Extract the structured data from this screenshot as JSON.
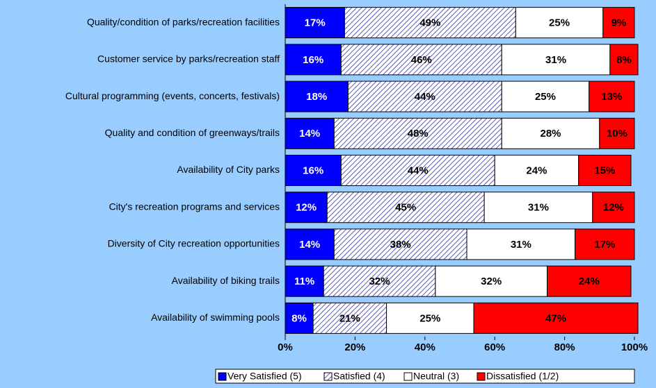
{
  "chart_data": {
    "type": "stacked-bar-horizontal",
    "categories": [
      "Quality/condition of parks/recreation facilities",
      "Customer service by parks/recreation staff",
      "Cultural programming (events, concerts, festivals)",
      "Quality and condition of greenways/trails",
      "Availability of City parks",
      "City's recreation programs and services",
      "Diversity of City recreation opportunities",
      "Availability of biking trails",
      "Availability of swimming pools"
    ],
    "series": [
      {
        "name": "Very Satisfied (5)",
        "color": "#0000ff",
        "values": [
          17,
          16,
          18,
          14,
          16,
          12,
          14,
          11,
          8
        ],
        "value_labels": [
          "17%",
          "16%",
          "18%",
          "14%",
          "16%",
          "12%",
          "14%",
          "11%",
          "8%"
        ]
      },
      {
        "name": "Satisfied (4)",
        "color": "#3333aa",
        "hatch": true,
        "values": [
          49,
          46,
          44,
          48,
          44,
          45,
          38,
          32,
          21
        ],
        "value_labels": [
          "49%",
          "46%",
          "44%",
          "48%",
          "44%",
          "45%",
          "38%",
          "32%",
          "21%"
        ]
      },
      {
        "name": "Neutral (3)",
        "color": "#ffffff",
        "values": [
          25,
          31,
          25,
          28,
          24,
          31,
          31,
          32,
          25
        ],
        "value_labels": [
          "25%",
          "31%",
          "25%",
          "28%",
          "24%",
          "31%",
          "31%",
          "32%",
          "25%"
        ]
      },
      {
        "name": "Dissatisfied (1/2)",
        "color": "#ff0000",
        "values": [
          9,
          8,
          13,
          10,
          15,
          12,
          17,
          24,
          47
        ],
        "value_labels": [
          "9%",
          "8%",
          "13%",
          "10%",
          "15%",
          "12%",
          "17%",
          "24%",
          "47%"
        ]
      }
    ],
    "xlim": [
      0,
      100
    ],
    "xticks": [
      {
        "value": 0,
        "label": "0%"
      },
      {
        "value": 20,
        "label": "20%"
      },
      {
        "value": 40,
        "label": "40%"
      },
      {
        "value": 60,
        "label": "60%"
      },
      {
        "value": 80,
        "label": "80%"
      },
      {
        "value": 100,
        "label": "100%"
      }
    ],
    "legend": "bottom-right"
  }
}
